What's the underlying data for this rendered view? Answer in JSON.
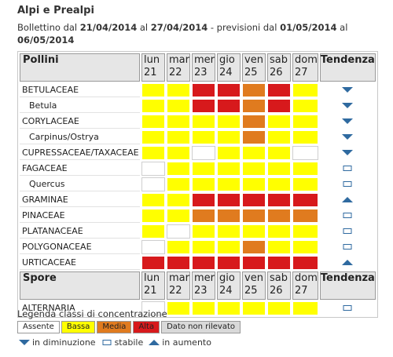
{
  "header": {
    "title": "Alpi e Prealpi",
    "bulletin": [
      "Bollettino dal",
      "21/04/2014",
      "al",
      "27/04/2014",
      "- previsioni dal",
      "01/05/2014",
      "al",
      "06/05/2014"
    ]
  },
  "table": {
    "sections": [
      {
        "header": "Pollini",
        "days": [
          {
            "day": "lun",
            "date": "21"
          },
          {
            "day": "mar",
            "date": "22"
          },
          {
            "day": "mer",
            "date": "23"
          },
          {
            "day": "gio",
            "date": "24"
          },
          {
            "day": "ven",
            "date": "25"
          },
          {
            "day": "sab",
            "date": "26"
          },
          {
            "day": "dom",
            "date": "27"
          }
        ],
        "trend_header": "Tendenza",
        "rows": [
          {
            "name": "BETULACEAE",
            "subtaxon": false,
            "levels": [
              "Bassa",
              "Bassa",
              "Alta",
              "Alta",
              "Media",
              "Alta",
              "Bassa"
            ],
            "trend": "in diminuzione"
          },
          {
            "name": "Betula",
            "subtaxon": true,
            "levels": [
              "Bassa",
              "Bassa",
              "Alta",
              "Alta",
              "Media",
              "Alta",
              "Bassa"
            ],
            "trend": "in diminuzione"
          },
          {
            "name": "CORYLACEAE",
            "subtaxon": false,
            "levels": [
              "Bassa",
              "Bassa",
              "Bassa",
              "Bassa",
              "Media",
              "Bassa",
              "Bassa"
            ],
            "trend": "in diminuzione"
          },
          {
            "name": "Carpinus/Ostrya",
            "subtaxon": true,
            "levels": [
              "Bassa",
              "Bassa",
              "Bassa",
              "Bassa",
              "Media",
              "Bassa",
              "Bassa"
            ],
            "trend": "in diminuzione"
          },
          {
            "name": "CUPRESSACEAE/TAXACEAE",
            "subtaxon": false,
            "levels": [
              "Bassa",
              "Bassa",
              "Assente",
              "Bassa",
              "Bassa",
              "Bassa",
              "Assente"
            ],
            "trend": "in diminuzione"
          },
          {
            "name": "FAGACEAE",
            "subtaxon": false,
            "levels": [
              "Assente",
              "Bassa",
              "Bassa",
              "Bassa",
              "Bassa",
              "Bassa",
              "Bassa"
            ],
            "trend": "stabile"
          },
          {
            "name": "Quercus",
            "subtaxon": true,
            "levels": [
              "Assente",
              "Bassa",
              "Bassa",
              "Bassa",
              "Bassa",
              "Bassa",
              "Bassa"
            ],
            "trend": "stabile"
          },
          {
            "name": "GRAMINAE",
            "subtaxon": false,
            "levels": [
              "Bassa",
              "Bassa",
              "Alta",
              "Alta",
              "Alta",
              "Alta",
              "Alta"
            ],
            "trend": "in aumento"
          },
          {
            "name": "PINACEAE",
            "subtaxon": false,
            "levels": [
              "Bassa",
              "Bassa",
              "Media",
              "Media",
              "Media",
              "Media",
              "Media"
            ],
            "trend": "stabile"
          },
          {
            "name": "PLATANACEAE",
            "subtaxon": false,
            "levels": [
              "Bassa",
              "Assente",
              "Bassa",
              "Bassa",
              "Bassa",
              "Bassa",
              "Bassa"
            ],
            "trend": "stabile"
          },
          {
            "name": "POLYGONACEAE",
            "subtaxon": false,
            "levels": [
              "Assente",
              "Bassa",
              "Bassa",
              "Bassa",
              "Media",
              "Bassa",
              "Bassa"
            ],
            "trend": "stabile"
          },
          {
            "name": "URTICACEAE",
            "subtaxon": false,
            "levels": [
              "Alta",
              "Alta",
              "Alta",
              "Alta",
              "Alta",
              "Alta",
              "Alta"
            ],
            "trend": "in aumento"
          }
        ]
      },
      {
        "header": "Spore",
        "days": [
          {
            "day": "lun",
            "date": "21"
          },
          {
            "day": "mar",
            "date": "22"
          },
          {
            "day": "mer",
            "date": "23"
          },
          {
            "day": "gio",
            "date": "24"
          },
          {
            "day": "ven",
            "date": "25"
          },
          {
            "day": "sab",
            "date": "26"
          },
          {
            "day": "dom",
            "date": "27"
          }
        ],
        "trend_header": "Tendenza",
        "rows": [
          {
            "name": "ALTERNARIA",
            "subtaxon": false,
            "levels": [
              "Assente",
              "Bassa",
              "Bassa",
              "Bassa",
              "Bassa",
              "Bassa",
              "Bassa"
            ],
            "trend": "stabile"
          }
        ]
      }
    ]
  },
  "legend": {
    "title": "Legenda classi di concentrazione",
    "classes": [
      {
        "name": "Assente",
        "color": "#ffffff"
      },
      {
        "name": "Bassa",
        "color": "#ffff00"
      },
      {
        "name": "Media",
        "color": "#e07b1f"
      },
      {
        "name": "Alta",
        "color": "#d7191c"
      },
      {
        "name": "Dato non rilevato",
        "color": "#d9d9d9"
      }
    ],
    "trends": [
      {
        "label": "in diminuzione",
        "icon": "down"
      },
      {
        "label": "stabile",
        "icon": "stable"
      },
      {
        "label": "in aumento",
        "icon": "up"
      }
    ]
  }
}
